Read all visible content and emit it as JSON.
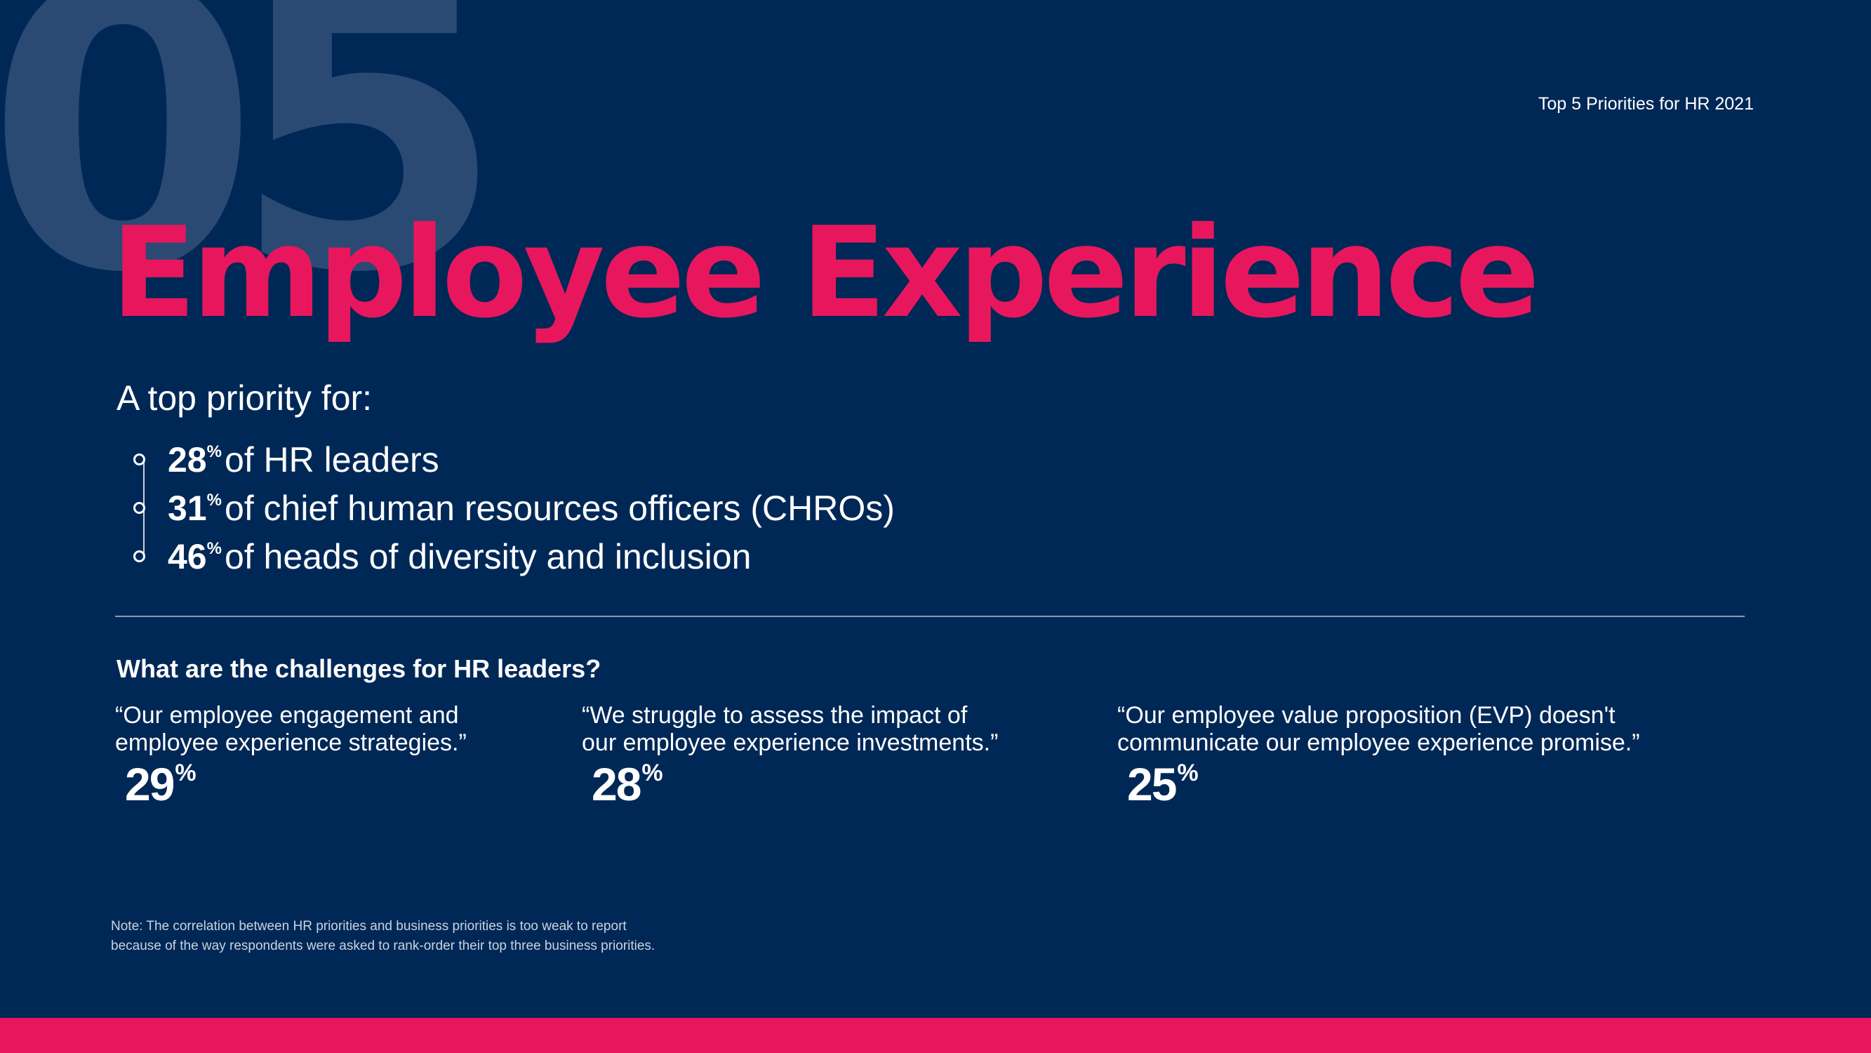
{
  "section_number": "05",
  "header_label": "Top 5 Priorities for HR 2021",
  "title": "Employee Experience",
  "intro": "A top priority for:",
  "stats": [
    {
      "value": "28",
      "unit": "%",
      "text": "of HR leaders"
    },
    {
      "value": "31",
      "unit": "%",
      "text": "of chief human resources officers (CHROs)"
    },
    {
      "value": "46",
      "unit": "%",
      "text": "of heads of diversity and inclusion"
    }
  ],
  "challenges_heading": "What are the challenges for HR leaders?",
  "quotes": [
    {
      "line1": "“Our employee engagement and",
      "line2": "employee experience strategies.”",
      "value": "29",
      "unit": "%"
    },
    {
      "line1": "“We struggle to assess the impact of",
      "line2": "our employee experience investments.”",
      "value": "28",
      "unit": "%"
    },
    {
      "line1": "“Our employee value proposition (EVP) doesn't",
      "line2": "communicate our employee experience promise.”",
      "value": "25",
      "unit": "%"
    }
  ],
  "note": {
    "line1": "Note: The correlation between HR priorities and business priorities is too weak to report",
    "line2": "because of the way respondents were asked to rank-order their top three business priorities."
  },
  "colors": {
    "background": "#002856",
    "accent": "#e8175d",
    "section_number": "#2a4a74",
    "text": "#ffffff"
  }
}
